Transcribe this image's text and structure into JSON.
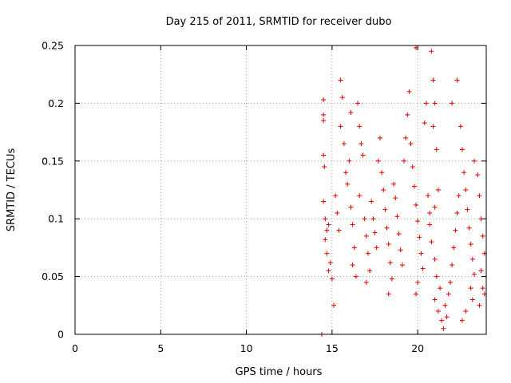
{
  "chart_data": {
    "type": "scatter",
    "title": "Day 215 of 2011, SRMTID for receiver dubo",
    "xlabel": "GPS time / hours",
    "ylabel": "SRMTID / TECUs",
    "xlim": [
      0,
      24
    ],
    "ylim": [
      0,
      0.25
    ],
    "xticks": [
      0,
      5,
      10,
      15,
      20
    ],
    "xtick_labels": [
      "0",
      "5",
      "10",
      "15",
      "20"
    ],
    "yticks": [
      0,
      0.05,
      0.1,
      0.15,
      0.2,
      0.25
    ],
    "ytick_labels": [
      "0",
      "0.05",
      "0.1",
      "0.15",
      "0.2",
      "0.25"
    ],
    "grid": true,
    "legend": "none",
    "marker": "plus",
    "colors": {
      "series": "#e00000"
    },
    "series": [
      {
        "points": [
          [
            14.4,
            0.0
          ],
          [
            14.5,
            0.19
          ],
          [
            14.5,
            0.185
          ],
          [
            14.5,
            0.203
          ],
          [
            14.5,
            0.155
          ],
          [
            14.55,
            0.145
          ],
          [
            14.5,
            0.115
          ],
          [
            14.6,
            0.1
          ],
          [
            14.7,
            0.09
          ],
          [
            14.6,
            0.082
          ],
          [
            14.8,
            0.095
          ],
          [
            14.7,
            0.07
          ],
          [
            14.9,
            0.062
          ],
          [
            14.8,
            0.055
          ],
          [
            15.0,
            0.048
          ],
          [
            15.1,
            0.025
          ],
          [
            15.2,
            0.12
          ],
          [
            15.3,
            0.105
          ],
          [
            15.4,
            0.09
          ],
          [
            15.5,
            0.22
          ],
          [
            15.6,
            0.205
          ],
          [
            15.5,
            0.18
          ],
          [
            15.7,
            0.165
          ],
          [
            15.8,
            0.14
          ],
          [
            15.9,
            0.13
          ],
          [
            16.0,
            0.15
          ],
          [
            16.1,
            0.11
          ],
          [
            16.2,
            0.095
          ],
          [
            16.3,
            0.075
          ],
          [
            16.2,
            0.06
          ],
          [
            16.4,
            0.05
          ],
          [
            16.1,
            0.192
          ],
          [
            16.5,
            0.2
          ],
          [
            16.6,
            0.18
          ],
          [
            16.7,
            0.165
          ],
          [
            16.8,
            0.155
          ],
          [
            16.6,
            0.12
          ],
          [
            16.9,
            0.1
          ],
          [
            17.0,
            0.085
          ],
          [
            17.1,
            0.07
          ],
          [
            17.2,
            0.055
          ],
          [
            17.0,
            0.045
          ],
          [
            17.3,
            0.115
          ],
          [
            17.4,
            0.1
          ],
          [
            17.5,
            0.088
          ],
          [
            17.6,
            0.075
          ],
          [
            17.7,
            0.15
          ],
          [
            17.8,
            0.17
          ],
          [
            17.9,
            0.14
          ],
          [
            18.0,
            0.125
          ],
          [
            18.1,
            0.108
          ],
          [
            18.2,
            0.092
          ],
          [
            18.3,
            0.078
          ],
          [
            18.4,
            0.062
          ],
          [
            18.5,
            0.048
          ],
          [
            18.3,
            0.035
          ],
          [
            18.6,
            0.13
          ],
          [
            18.7,
            0.118
          ],
          [
            18.8,
            0.102
          ],
          [
            18.9,
            0.087
          ],
          [
            19.0,
            0.073
          ],
          [
            19.1,
            0.06
          ],
          [
            19.2,
            0.15
          ],
          [
            19.3,
            0.17
          ],
          [
            19.4,
            0.19
          ],
          [
            19.5,
            0.21
          ],
          [
            19.6,
            0.165
          ],
          [
            19.7,
            0.145
          ],
          [
            19.8,
            0.128
          ],
          [
            19.9,
            0.112
          ],
          [
            20.0,
            0.098
          ],
          [
            20.1,
            0.084
          ],
          [
            20.2,
            0.07
          ],
          [
            20.3,
            0.057
          ],
          [
            20.0,
            0.045
          ],
          [
            19.9,
            0.035
          ],
          [
            19.9,
            0.248
          ],
          [
            20.5,
            0.2
          ],
          [
            20.4,
            0.183
          ],
          [
            20.6,
            0.12
          ],
          [
            20.7,
            0.105
          ],
          [
            20.8,
            0.245
          ],
          [
            20.9,
            0.22
          ],
          [
            21.0,
            0.2
          ],
          [
            20.9,
            0.18
          ],
          [
            21.1,
            0.16
          ],
          [
            21.2,
            0.125
          ],
          [
            21.0,
            0.11
          ],
          [
            20.7,
            0.095
          ],
          [
            20.8,
            0.08
          ],
          [
            21.0,
            0.065
          ],
          [
            21.1,
            0.05
          ],
          [
            21.3,
            0.04
          ],
          [
            21.0,
            0.03
          ],
          [
            21.2,
            0.02
          ],
          [
            21.4,
            0.012
          ],
          [
            21.5,
            0.005
          ],
          [
            21.7,
            0.015
          ],
          [
            21.6,
            0.025
          ],
          [
            21.8,
            0.035
          ],
          [
            21.9,
            0.045
          ],
          [
            22.0,
            0.06
          ],
          [
            22.1,
            0.075
          ],
          [
            22.2,
            0.09
          ],
          [
            22.3,
            0.105
          ],
          [
            22.4,
            0.12
          ],
          [
            22.0,
            0.2
          ],
          [
            22.3,
            0.22
          ],
          [
            22.5,
            0.18
          ],
          [
            22.6,
            0.16
          ],
          [
            22.7,
            0.14
          ],
          [
            22.8,
            0.125
          ],
          [
            22.9,
            0.108
          ],
          [
            23.0,
            0.092
          ],
          [
            23.1,
            0.078
          ],
          [
            23.2,
            0.065
          ],
          [
            23.3,
            0.052
          ],
          [
            23.1,
            0.04
          ],
          [
            23.2,
            0.03
          ],
          [
            23.3,
            0.15
          ],
          [
            23.5,
            0.138
          ],
          [
            23.6,
            0.12
          ],
          [
            23.7,
            0.1
          ],
          [
            23.8,
            0.085
          ],
          [
            23.9,
            0.07
          ],
          [
            23.7,
            0.055
          ],
          [
            23.8,
            0.04
          ],
          [
            23.9,
            0.035
          ],
          [
            23.6,
            0.025
          ],
          [
            22.6,
            0.012
          ],
          [
            22.8,
            0.02
          ]
        ]
      }
    ]
  }
}
